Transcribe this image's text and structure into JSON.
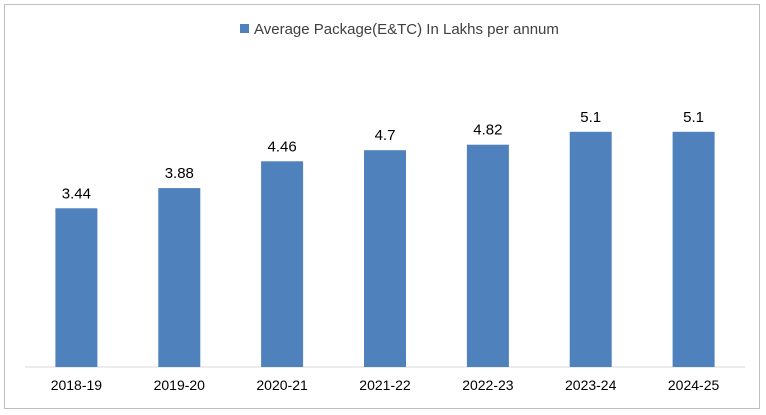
{
  "chart_data": {
    "type": "bar",
    "categories": [
      "2018-19",
      "2019-20",
      "2020-21",
      "2021-22",
      "2022-23",
      "2023-24",
      "2024-25"
    ],
    "series": [
      {
        "name": "Average Package(E&TC) In Lakhs per annum",
        "values": [
          3.44,
          3.88,
          4.46,
          4.7,
          4.82,
          5.1,
          5.1
        ],
        "color": "#4f81bd"
      }
    ],
    "data_labels": [
      "3.44",
      "3.88",
      "4.46",
      "4.7",
      "4.82",
      "5.1",
      "5.1"
    ],
    "legend_position": "top-center",
    "grid": false,
    "ylim": [
      0,
      6.5
    ],
    "axis_color": "#d9d9d9"
  }
}
